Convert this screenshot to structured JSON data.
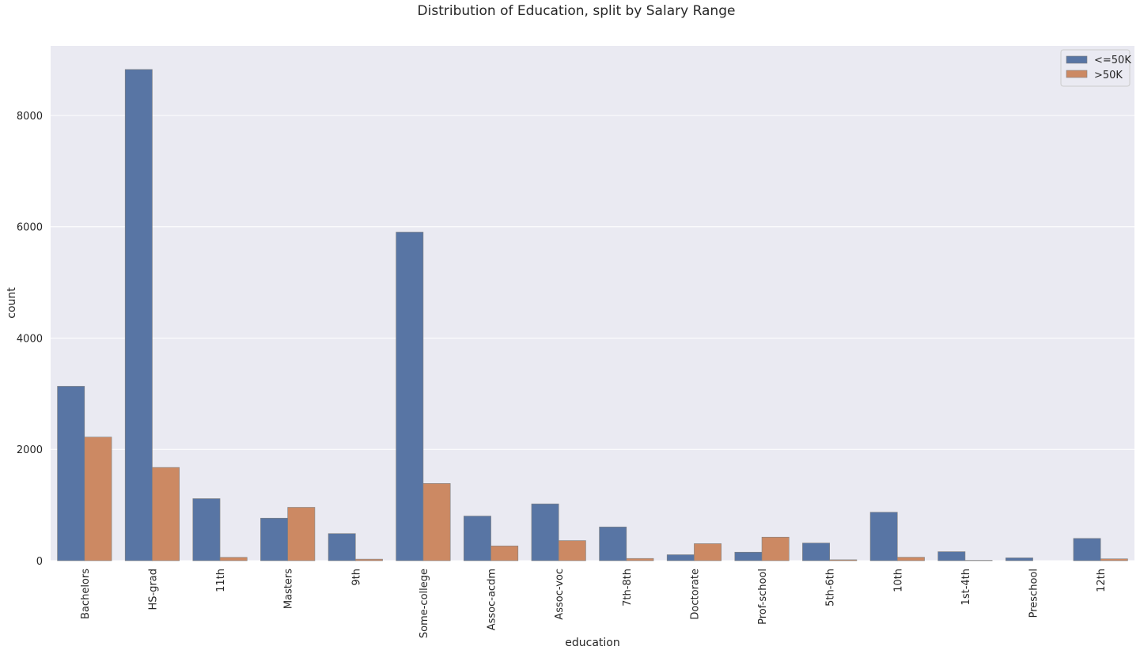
{
  "chart_data": {
    "type": "bar",
    "title": "Distribution of Education, split by Salary Range",
    "xlabel": "education",
    "ylabel": "count",
    "ylim": [
      0,
      9250
    ],
    "yticks": [
      0,
      2000,
      4000,
      6000,
      8000
    ],
    "grid": true,
    "legend_position": "top-right",
    "categories": [
      "Bachelors",
      "HS-grad",
      "11th",
      "Masters",
      "9th",
      "Some-college",
      "Assoc-acdm",
      "Assoc-voc",
      "7th-8th",
      "Doctorate",
      "Prof-school",
      "5th-6th",
      "10th",
      "1st-4th",
      "Preschool",
      "12th"
    ],
    "series": [
      {
        "name": "<=50K",
        "color": "#5875a4",
        "values": [
          3134,
          8826,
          1115,
          764,
          487,
          5904,
          802,
          1021,
          606,
          107,
          153,
          317,
          871,
          162,
          51,
          400
        ]
      },
      {
        "name": ">50K",
        "color": "#cc8963",
        "values": [
          2221,
          1675,
          60,
          959,
          27,
          1387,
          265,
          361,
          40,
          306,
          423,
          16,
          62,
          6,
          0,
          33
        ]
      }
    ]
  }
}
